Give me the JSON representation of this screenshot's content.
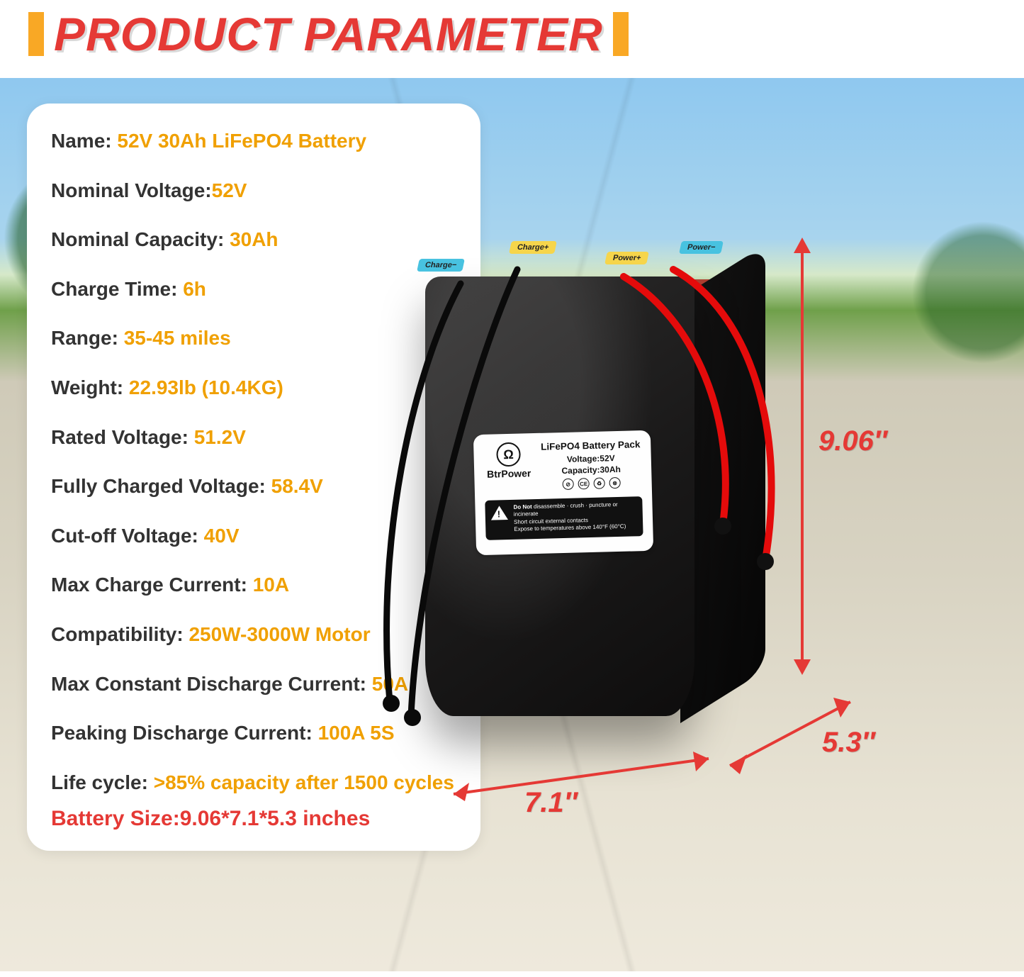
{
  "header": {
    "title": "PRODUCT PARAMETER"
  },
  "specs": [
    {
      "label": "Name: ",
      "value": "52V 30Ah LiFePO4 Battery"
    },
    {
      "label": "Nominal Voltage:",
      "value": "52V"
    },
    {
      "label": "Nominal Capacity: ",
      "value": "30Ah"
    },
    {
      "label": "Charge Time: ",
      "value": "6h"
    },
    {
      "label": "Range: ",
      "value": "35-45 miles"
    },
    {
      "label": "Weight: ",
      "value": "22.93lb (10.4KG)"
    },
    {
      "label": "Rated Voltage: ",
      "value": "51.2V"
    },
    {
      "label": "Fully Charged Voltage: ",
      "value": "58.4V"
    },
    {
      "label": "Cut-off Voltage: ",
      "value": "40V"
    },
    {
      "label": "Max Charge Current: ",
      "value": "10A"
    },
    {
      "label": "Compatibility: ",
      "value": "250W-3000W Motor"
    },
    {
      "label": "Max Constant Discharge Current: ",
      "value": "50A"
    },
    {
      "label": "Peaking Discharge Current: ",
      "value": "100A 5S"
    },
    {
      "label": "Life cycle: ",
      "value": ">85% capacity after 1500 cycles"
    }
  ],
  "size_line": "Battery Size:9.06*7.1*5.3 inches",
  "sticker": {
    "brand": "BtrPower",
    "title": "LiFePO4 Battery Pack",
    "voltage_label": "Voltage:52V",
    "capacity_label": "Capacity:30Ah",
    "donot": "Do Not",
    "warn1": "disassemble · crush · puncture or incinerate",
    "warn2": "Short circuit external contacts",
    "warn3": "Expose to temperatures above 140°F (60°C)"
  },
  "tags": {
    "charge_minus": "Charge−",
    "charge_plus": "Charge+",
    "power_plus": "Power+",
    "power_minus": "Power−"
  },
  "dims": {
    "height": "9.06″",
    "width": "7.1″",
    "depth": "5.3″"
  },
  "colors": {
    "accent_red": "#e53935",
    "accent_orange": "#f0a000",
    "bar": "#f9a825"
  }
}
